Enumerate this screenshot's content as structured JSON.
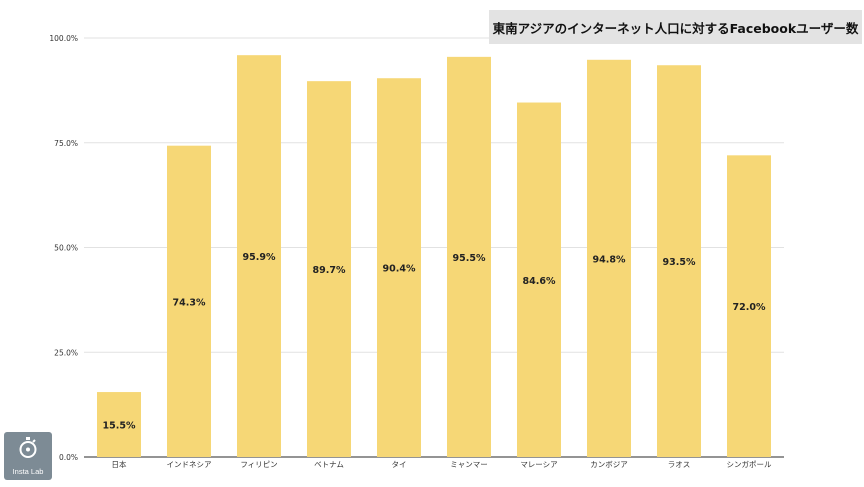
{
  "chart_data": {
    "type": "bar",
    "title": "東南アジアのインターネット人口に対するFacebookユーザー数",
    "categories": [
      "日本",
      "インドネシア",
      "フィリピン",
      "ベトナム",
      "タイ",
      "ミャンマー",
      "マレーシア",
      "カンボジア",
      "ラオス",
      "シンガポール"
    ],
    "values": [
      15.5,
      74.3,
      95.9,
      89.7,
      90.4,
      95.5,
      84.6,
      94.8,
      93.5,
      72.0
    ],
    "data_labels": [
      "15.5%",
      "74.3%",
      "95.9%",
      "89.7%",
      "90.4%",
      "95.5%",
      "84.6%",
      "94.8%",
      "93.5%",
      "72.0%"
    ],
    "yticks": [
      "0.0%",
      "25.0%",
      "50.0%",
      "75.0%",
      "100.0%"
    ],
    "ylim": [
      0,
      100
    ],
    "xlabel": "",
    "ylabel": "",
    "grid": true,
    "bar_color": "#f6d776",
    "grid_color": "#e2e2e2"
  },
  "logo": {
    "text": "Insta Lab",
    "icon": "stopwatch-icon"
  }
}
